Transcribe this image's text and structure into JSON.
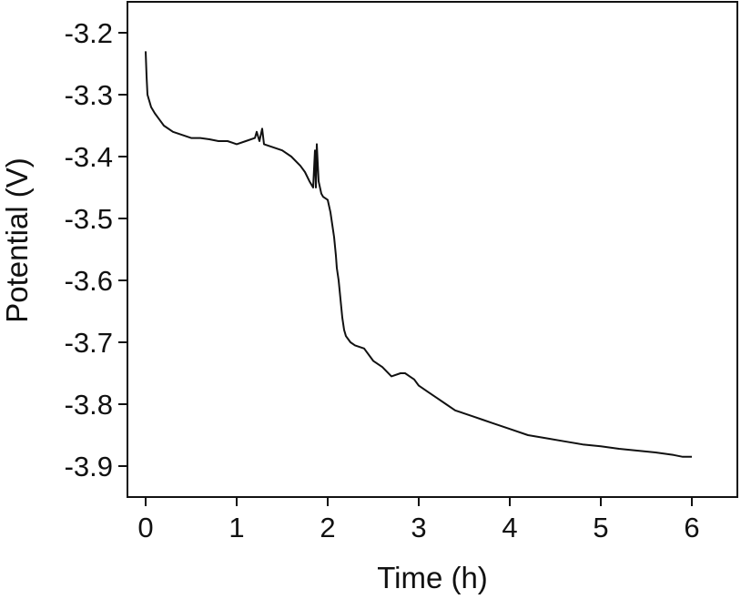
{
  "chart_data": {
    "type": "line",
    "title": "",
    "xlabel": "Time (h)",
    "ylabel": "Potential (V)",
    "xlim": [
      -0.2,
      6.5
    ],
    "ylim": [
      -3.95,
      -3.15
    ],
    "x_ticks": [
      0,
      1,
      2,
      3,
      4,
      5,
      6
    ],
    "x_tick_labels": [
      "0",
      "1",
      "2",
      "3",
      "4",
      "5",
      "6"
    ],
    "y_ticks": [
      -3.2,
      -3.3,
      -3.4,
      -3.5,
      -3.6,
      -3.7,
      -3.8,
      -3.9
    ],
    "y_tick_labels": [
      "-3.2",
      "-3.3",
      "-3.4",
      "-3.5",
      "-3.6",
      "-3.7",
      "-3.8",
      "-3.9"
    ],
    "grid": false,
    "legend": "none",
    "line_color": "#111111",
    "series": [
      {
        "x": [
          0,
          0.01,
          0.02,
          0.04,
          0.06,
          0.1,
          0.15,
          0.2,
          0.3,
          0.4,
          0.5,
          0.6,
          0.7,
          0.8,
          0.9,
          1.0,
          1.1,
          1.2,
          1.22,
          1.25,
          1.28,
          1.3,
          1.4,
          1.5,
          1.6,
          1.7,
          1.75,
          1.8,
          1.84,
          1.85,
          1.86,
          1.87,
          1.88,
          1.9,
          1.93,
          1.95,
          2.0,
          2.03,
          2.05,
          2.07,
          2.09,
          2.1,
          2.12,
          2.14,
          2.16,
          2.18,
          2.2,
          2.25,
          2.3,
          2.4,
          2.5,
          2.6,
          2.7,
          2.8,
          2.85,
          2.9,
          2.95,
          3.0,
          3.1,
          3.2,
          3.3,
          3.4,
          3.5,
          3.6,
          3.7,
          3.8,
          3.9,
          4.0,
          4.2,
          4.4,
          4.6,
          4.8,
          5.0,
          5.2,
          5.4,
          5.6,
          5.8,
          5.9,
          6.0
        ],
        "values": [
          -3.23,
          -3.27,
          -3.3,
          -3.31,
          -3.32,
          -3.33,
          -3.34,
          -3.35,
          -3.36,
          -3.365,
          -3.37,
          -3.37,
          -3.372,
          -3.375,
          -3.375,
          -3.38,
          -3.375,
          -3.37,
          -3.36,
          -3.375,
          -3.355,
          -3.38,
          -3.385,
          -3.39,
          -3.4,
          -3.415,
          -3.425,
          -3.44,
          -3.45,
          -3.42,
          -3.39,
          -3.45,
          -3.38,
          -3.44,
          -3.46,
          -3.465,
          -3.47,
          -3.49,
          -3.51,
          -3.53,
          -3.56,
          -3.58,
          -3.6,
          -3.63,
          -3.66,
          -3.68,
          -3.69,
          -3.7,
          -3.705,
          -3.71,
          -3.73,
          -3.74,
          -3.755,
          -3.75,
          -3.75,
          -3.755,
          -3.76,
          -3.77,
          -3.78,
          -3.79,
          -3.8,
          -3.81,
          -3.815,
          -3.82,
          -3.825,
          -3.83,
          -3.835,
          -3.84,
          -3.85,
          -3.855,
          -3.86,
          -3.865,
          -3.868,
          -3.872,
          -3.875,
          -3.878,
          -3.882,
          -3.885,
          -3.885
        ]
      }
    ]
  }
}
